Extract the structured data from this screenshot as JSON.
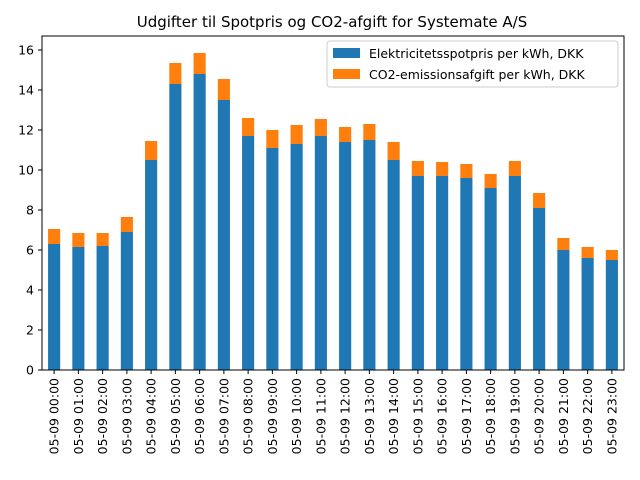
{
  "chart_data": {
    "type": "bar",
    "stacked": true,
    "title": "Udgifter til Spotpris og CO2-afgift for Systemate A/S",
    "xlabel": "",
    "ylabel": "",
    "ylim": [
      0,
      16.7
    ],
    "yticks": [
      0,
      2,
      4,
      6,
      8,
      10,
      12,
      14,
      16
    ],
    "grid": false,
    "legend_position": "top-right",
    "categories": [
      "05-09 00:00",
      "05-09 01:00",
      "05-09 02:00",
      "05-09 03:00",
      "05-09 04:00",
      "05-09 05:00",
      "05-09 06:00",
      "05-09 07:00",
      "05-09 08:00",
      "05-09 09:00",
      "05-09 10:00",
      "05-09 11:00",
      "05-09 12:00",
      "05-09 13:00",
      "05-09 14:00",
      "05-09 15:00",
      "05-09 16:00",
      "05-09 17:00",
      "05-09 18:00",
      "05-09 19:00",
      "05-09 20:00",
      "05-09 21:00",
      "05-09 22:00",
      "05-09 23:00"
    ],
    "series": [
      {
        "name": "Elektricitetsspotpris per kWh, DKK",
        "color": "#1f77b4",
        "values": [
          6.3,
          6.15,
          6.2,
          6.9,
          10.5,
          14.3,
          14.8,
          13.5,
          11.7,
          11.1,
          11.3,
          11.7,
          11.4,
          11.5,
          10.5,
          9.7,
          9.7,
          9.6,
          9.1,
          9.7,
          8.1,
          6.0,
          5.6,
          5.5
        ]
      },
      {
        "name": "CO2-emissionsafgift per kWh, DKK",
        "color": "#ff7f0e",
        "values": [
          0.75,
          0.7,
          0.65,
          0.75,
          0.95,
          1.05,
          1.05,
          1.05,
          0.9,
          0.9,
          0.95,
          0.85,
          0.75,
          0.8,
          0.9,
          0.75,
          0.7,
          0.7,
          0.7,
          0.75,
          0.75,
          0.6,
          0.55,
          0.5
        ]
      }
    ]
  }
}
